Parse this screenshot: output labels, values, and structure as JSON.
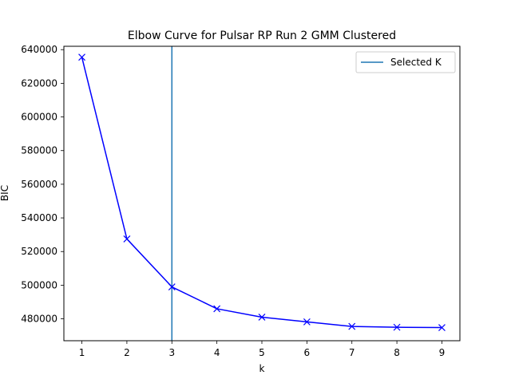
{
  "chart_data": {
    "type": "line",
    "title": "Elbow Curve for Pulsar RP Run 2 GMM Clustered",
    "xlabel": "k",
    "ylabel": "BIC",
    "x": [
      1,
      2,
      3,
      4,
      5,
      6,
      7,
      8,
      9
    ],
    "series": [
      {
        "values": [
          635500,
          527500,
          499000,
          486000,
          481000,
          478200,
          475500,
          475000,
          474800
        ],
        "color": "#0000ff",
        "marker": "x"
      }
    ],
    "reference_lines": [
      {
        "orientation": "vertical",
        "x": 3,
        "name": "Selected K",
        "color": "#1f77b4"
      }
    ],
    "xlim": [
      0.6,
      9.4
    ],
    "ylim": [
      467000,
      642000
    ],
    "xticks": [
      "1",
      "2",
      "3",
      "4",
      "5",
      "6",
      "7",
      "8",
      "9"
    ],
    "yticks": [
      "480000",
      "500000",
      "520000",
      "540000",
      "560000",
      "580000",
      "600000",
      "620000",
      "640000"
    ],
    "legend": {
      "entries": [
        "Selected K"
      ],
      "placement": "top-right"
    },
    "grid": false
  }
}
